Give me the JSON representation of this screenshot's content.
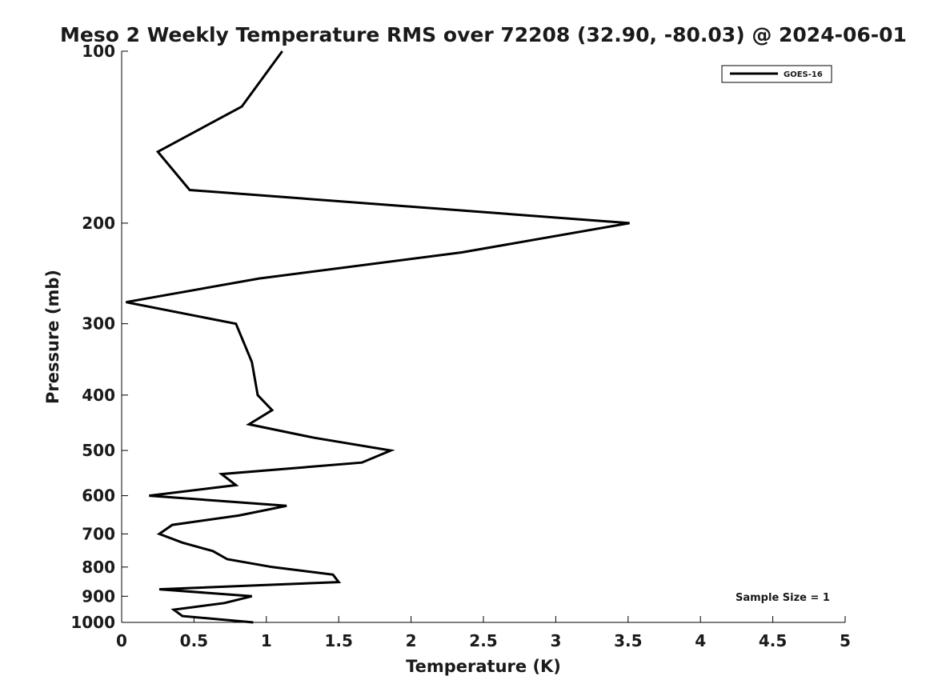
{
  "chart_data": {
    "type": "line",
    "title": "Meso 2 Weekly Temperature RMS over 72208 (32.90, -80.03) @ 2024-06-01",
    "xlabel": "Temperature (K)",
    "ylabel": "Pressure (mb)",
    "xlim": [
      0,
      5
    ],
    "ylim": [
      100,
      1000
    ],
    "y_scale": "log",
    "y_inverted": true,
    "grid": false,
    "legend_position": "top-right",
    "x_ticks": [
      "0",
      "0.5",
      "1",
      "1.5",
      "2",
      "2.5",
      "3",
      "3.5",
      "4",
      "4.5",
      "5"
    ],
    "y_ticks": [
      "100",
      "200",
      "300",
      "400",
      "500",
      "600",
      "700",
      "800",
      "900",
      "1000"
    ],
    "annotation": "Sample Size = 1",
    "series": [
      {
        "name": "GOES-16",
        "color": "#000000",
        "points": [
          {
            "x": 1.11,
            "y": 100
          },
          {
            "x": 0.83,
            "y": 125
          },
          {
            "x": 0.25,
            "y": 150
          },
          {
            "x": 0.47,
            "y": 175
          },
          {
            "x": 3.51,
            "y": 200
          },
          {
            "x": 2.35,
            "y": 225
          },
          {
            "x": 0.95,
            "y": 250
          },
          {
            "x": 0.03,
            "y": 275
          },
          {
            "x": 0.79,
            "y": 300
          },
          {
            "x": 0.9,
            "y": 350
          },
          {
            "x": 0.94,
            "y": 400
          },
          {
            "x": 1.04,
            "y": 425
          },
          {
            "x": 0.88,
            "y": 450
          },
          {
            "x": 1.33,
            "y": 475
          },
          {
            "x": 1.86,
            "y": 500
          },
          {
            "x": 1.66,
            "y": 525
          },
          {
            "x": 0.69,
            "y": 550
          },
          {
            "x": 0.79,
            "y": 575
          },
          {
            "x": 0.19,
            "y": 600
          },
          {
            "x": 1.14,
            "y": 625
          },
          {
            "x": 0.81,
            "y": 650
          },
          {
            "x": 0.35,
            "y": 675
          },
          {
            "x": 0.26,
            "y": 700
          },
          {
            "x": 0.42,
            "y": 725
          },
          {
            "x": 0.63,
            "y": 750
          },
          {
            "x": 0.73,
            "y": 775
          },
          {
            "x": 1.04,
            "y": 800
          },
          {
            "x": 1.46,
            "y": 825
          },
          {
            "x": 1.5,
            "y": 850
          },
          {
            "x": 0.26,
            "y": 875
          },
          {
            "x": 0.9,
            "y": 900
          },
          {
            "x": 0.71,
            "y": 925
          },
          {
            "x": 0.36,
            "y": 950
          },
          {
            "x": 0.42,
            "y": 975
          },
          {
            "x": 0.91,
            "y": 1000
          }
        ]
      }
    ]
  }
}
